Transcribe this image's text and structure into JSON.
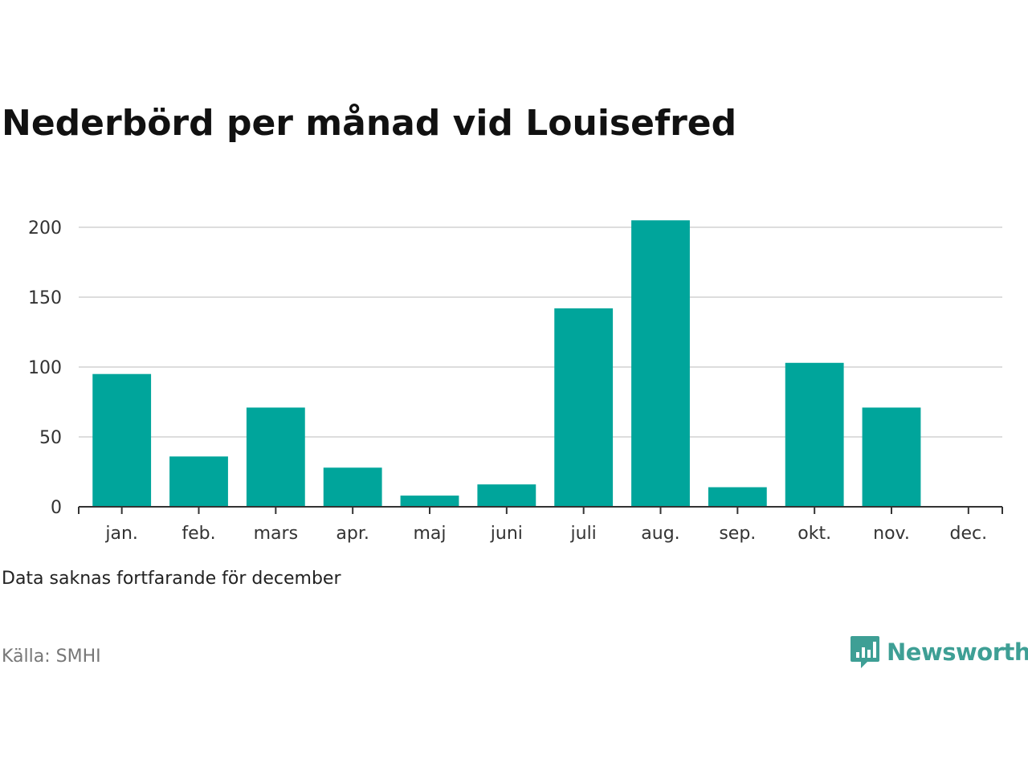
{
  "title": "Nederbörd per månad vid Louisefred",
  "note": "Data saknas fortfarande för december",
  "source": "Källa: SMHI",
  "brand": {
    "name": "Newsworthy",
    "color": "#3e9f95",
    "icon": "chart-speech-bubble-icon"
  },
  "chart_data": {
    "type": "bar",
    "title": "Nederbörd per månad vid Louisefred",
    "categories": [
      "jan.",
      "feb.",
      "mars",
      "apr.",
      "maj",
      "juni",
      "juli",
      "aug.",
      "sep.",
      "okt.",
      "nov.",
      "dec."
    ],
    "values": [
      95,
      36,
      71,
      28,
      8,
      16,
      142,
      205,
      14,
      103,
      71,
      null
    ],
    "ylim": [
      0,
      200
    ],
    "yticks": [
      0,
      50,
      100,
      150,
      200
    ],
    "grid": true,
    "legend": "none",
    "bar_color": "#00a59b",
    "xlabel": "",
    "ylabel": ""
  }
}
